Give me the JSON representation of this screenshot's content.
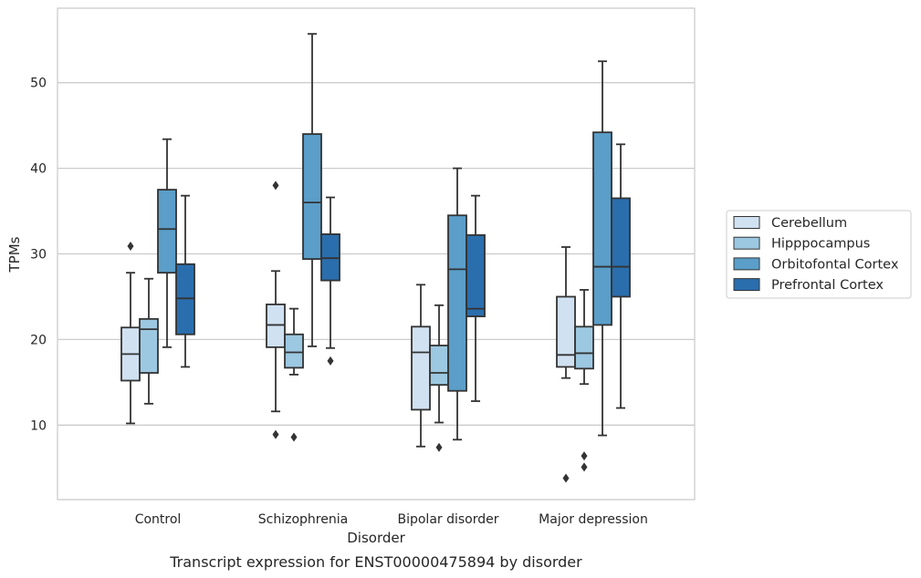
{
  "chart_data": {
    "type": "box",
    "caption": "Transcript expression for ENST00000475894 by disorder",
    "xlabel": "Disorder",
    "ylabel": "TPMs",
    "ylim": [
      1.3,
      58.7
    ],
    "yticks": [
      10,
      20,
      30,
      40,
      50
    ],
    "grid": "horizontal",
    "legend_position": "right",
    "categories": [
      "Control",
      "Schizophrenia",
      "Bipolar disorder",
      "Major depression"
    ],
    "series": [
      {
        "name": "Cerebellum",
        "color": "#d0e1f1",
        "boxes": [
          {
            "whisker_low": 10.2,
            "q1": 15.2,
            "median": 18.3,
            "q3": 21.4,
            "whisker_high": 27.8,
            "outliers": [
              30.9
            ]
          },
          {
            "whisker_low": 11.6,
            "q1": 19.1,
            "median": 21.7,
            "q3": 24.1,
            "whisker_high": 28.0,
            "outliers": [
              38.0,
              8.9
            ]
          },
          {
            "whisker_low": 7.5,
            "q1": 11.8,
            "median": 18.5,
            "q3": 21.5,
            "whisker_high": 26.4,
            "outliers": []
          },
          {
            "whisker_low": 15.5,
            "q1": 16.8,
            "median": 18.2,
            "q3": 25.0,
            "whisker_high": 30.8,
            "outliers": [
              3.8
            ]
          }
        ]
      },
      {
        "name": "Hipppocampus",
        "color": "#9cc8e1",
        "boxes": [
          {
            "whisker_low": 12.5,
            "q1": 16.1,
            "median": 21.2,
            "q3": 22.4,
            "whisker_high": 27.1,
            "outliers": []
          },
          {
            "whisker_low": 15.9,
            "q1": 16.7,
            "median": 18.5,
            "q3": 20.6,
            "whisker_high": 23.6,
            "outliers": [
              8.6
            ]
          },
          {
            "whisker_low": 10.3,
            "q1": 14.7,
            "median": 16.1,
            "q3": 19.3,
            "whisker_high": 24.0,
            "outliers": [
              7.4
            ]
          },
          {
            "whisker_low": 14.8,
            "q1": 16.6,
            "median": 18.4,
            "q3": 21.5,
            "whisker_high": 25.8,
            "outliers": [
              6.4,
              5.1
            ]
          }
        ]
      },
      {
        "name": "Orbitofontal Cortex",
        "color": "#5a9ec9",
        "boxes": [
          {
            "whisker_low": 19.1,
            "q1": 27.8,
            "median": 32.9,
            "q3": 37.5,
            "whisker_high": 43.4,
            "outliers": []
          },
          {
            "whisker_low": 19.2,
            "q1": 29.4,
            "median": 36.0,
            "q3": 44.0,
            "whisker_high": 55.7,
            "outliers": []
          },
          {
            "whisker_low": 8.3,
            "q1": 14.0,
            "median": 28.2,
            "q3": 34.5,
            "whisker_high": 40.0,
            "outliers": []
          },
          {
            "whisker_low": 8.8,
            "q1": 21.7,
            "median": 28.5,
            "q3": 44.2,
            "whisker_high": 52.5,
            "outliers": []
          }
        ]
      },
      {
        "name": "Prefrontal Cortex",
        "color": "#2a6ead",
        "boxes": [
          {
            "whisker_low": 16.8,
            "q1": 20.6,
            "median": 24.8,
            "q3": 28.8,
            "whisker_high": 36.8,
            "outliers": []
          },
          {
            "whisker_low": 19.0,
            "q1": 26.9,
            "median": 29.5,
            "q3": 32.3,
            "whisker_high": 36.6,
            "outliers": [
              17.5
            ]
          },
          {
            "whisker_low": 12.8,
            "q1": 22.7,
            "median": 23.6,
            "q3": 32.2,
            "whisker_high": 36.8,
            "outliers": []
          },
          {
            "whisker_low": 12.0,
            "q1": 25.0,
            "median": 28.5,
            "q3": 36.5,
            "whisker_high": 42.8,
            "outliers": []
          }
        ]
      }
    ]
  }
}
